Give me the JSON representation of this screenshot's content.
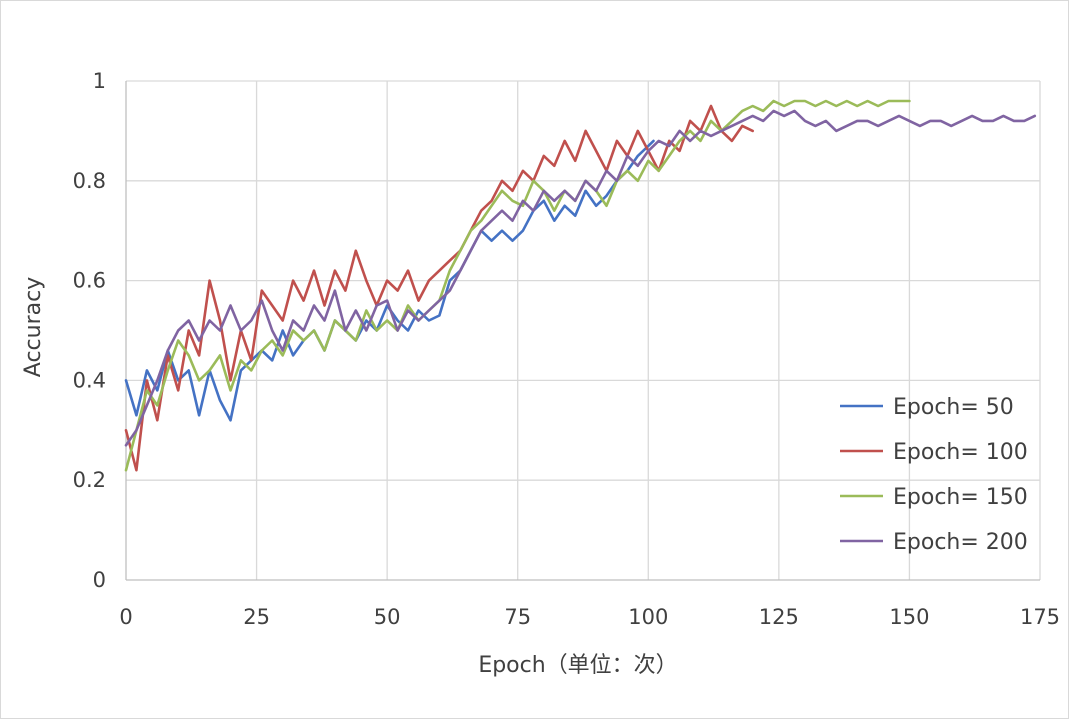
{
  "chart_data": {
    "type": "line",
    "title": "",
    "xlabel": "Epoch（单位：次）",
    "ylabel": "Accuracy",
    "xlim": [
      0,
      175
    ],
    "ylim": [
      0,
      1
    ],
    "x_ticks": [
      "0",
      "25",
      "50",
      "75",
      "100",
      "125",
      "150",
      "175"
    ],
    "y_ticks": [
      "0",
      "0.2",
      "0.4",
      "0.6",
      "0.8",
      "1"
    ],
    "grid": true,
    "legend_position": "right",
    "series": [
      {
        "name": "Epoch= 50",
        "color": "#4472c4",
        "x": [
          0,
          2,
          4,
          6,
          8,
          10,
          12,
          14,
          16,
          18,
          20,
          22,
          24,
          26,
          28,
          30,
          32,
          34,
          36,
          38,
          40,
          42,
          44,
          46,
          48,
          50,
          52,
          54,
          56,
          58,
          60,
          62,
          64,
          66,
          68,
          70,
          72,
          74,
          76,
          78,
          80,
          82,
          84,
          86,
          88,
          90,
          92,
          94,
          96,
          98,
          100,
          101
        ],
        "y": [
          0.4,
          0.33,
          0.42,
          0.38,
          0.46,
          0.4,
          0.42,
          0.33,
          0.42,
          0.36,
          0.32,
          0.42,
          0.44,
          0.46,
          0.44,
          0.5,
          0.45,
          0.48,
          0.5,
          0.46,
          0.52,
          0.5,
          0.48,
          0.52,
          0.5,
          0.55,
          0.52,
          0.5,
          0.54,
          0.52,
          0.53,
          0.6,
          0.62,
          0.66,
          0.7,
          0.68,
          0.7,
          0.68,
          0.7,
          0.74,
          0.76,
          0.72,
          0.75,
          0.73,
          0.78,
          0.75,
          0.77,
          0.8,
          0.82,
          0.85,
          0.87,
          0.88
        ]
      },
      {
        "name": "Epoch= 100",
        "color": "#c0504d",
        "x": [
          0,
          2,
          4,
          6,
          8,
          10,
          12,
          14,
          16,
          18,
          20,
          22,
          24,
          26,
          28,
          30,
          32,
          34,
          36,
          38,
          40,
          42,
          44,
          46,
          48,
          50,
          52,
          54,
          56,
          58,
          60,
          62,
          64,
          66,
          68,
          70,
          72,
          74,
          76,
          78,
          80,
          82,
          84,
          86,
          88,
          90,
          92,
          94,
          96,
          98,
          100,
          102,
          104,
          106,
          108,
          110,
          112,
          114,
          116,
          118,
          120
        ],
        "y": [
          0.3,
          0.22,
          0.4,
          0.32,
          0.45,
          0.38,
          0.5,
          0.45,
          0.6,
          0.52,
          0.4,
          0.5,
          0.44,
          0.58,
          0.55,
          0.52,
          0.6,
          0.56,
          0.62,
          0.55,
          0.62,
          0.58,
          0.66,
          0.6,
          0.55,
          0.6,
          0.58,
          0.62,
          0.56,
          0.6,
          0.62,
          0.64,
          0.66,
          0.7,
          0.74,
          0.76,
          0.8,
          0.78,
          0.82,
          0.8,
          0.85,
          0.83,
          0.88,
          0.84,
          0.9,
          0.86,
          0.82,
          0.88,
          0.85,
          0.9,
          0.86,
          0.82,
          0.88,
          0.86,
          0.92,
          0.9,
          0.95,
          0.9,
          0.88,
          0.91,
          0.9
        ]
      },
      {
        "name": "Epoch= 150",
        "color": "#9bbb59",
        "x": [
          0,
          2,
          4,
          6,
          8,
          10,
          12,
          14,
          16,
          18,
          20,
          22,
          24,
          26,
          28,
          30,
          32,
          34,
          36,
          38,
          40,
          42,
          44,
          46,
          48,
          50,
          52,
          54,
          56,
          58,
          60,
          62,
          64,
          66,
          68,
          70,
          72,
          74,
          76,
          78,
          80,
          82,
          84,
          86,
          88,
          90,
          92,
          94,
          96,
          98,
          100,
          102,
          104,
          106,
          108,
          110,
          112,
          114,
          116,
          118,
          120,
          122,
          124,
          126,
          128,
          130,
          132,
          134,
          136,
          138,
          140,
          142,
          144,
          146,
          148,
          150
        ],
        "y": [
          0.22,
          0.3,
          0.38,
          0.35,
          0.42,
          0.48,
          0.45,
          0.4,
          0.42,
          0.45,
          0.38,
          0.44,
          0.42,
          0.46,
          0.48,
          0.45,
          0.5,
          0.48,
          0.5,
          0.46,
          0.52,
          0.5,
          0.48,
          0.54,
          0.5,
          0.52,
          0.5,
          0.55,
          0.52,
          0.54,
          0.56,
          0.62,
          0.66,
          0.7,
          0.72,
          0.75,
          0.78,
          0.76,
          0.75,
          0.8,
          0.78,
          0.74,
          0.78,
          0.76,
          0.8,
          0.78,
          0.75,
          0.8,
          0.82,
          0.8,
          0.84,
          0.82,
          0.85,
          0.88,
          0.9,
          0.88,
          0.92,
          0.9,
          0.92,
          0.94,
          0.95,
          0.94,
          0.96,
          0.95,
          0.96,
          0.96,
          0.95,
          0.96,
          0.95,
          0.96,
          0.95,
          0.96,
          0.95,
          0.96,
          0.96,
          0.96
        ]
      },
      {
        "name": "Epoch= 200",
        "color": "#8064a2",
        "x": [
          0,
          2,
          4,
          6,
          8,
          10,
          12,
          14,
          16,
          18,
          20,
          22,
          24,
          26,
          28,
          30,
          32,
          34,
          36,
          38,
          40,
          42,
          44,
          46,
          48,
          50,
          52,
          54,
          56,
          58,
          60,
          62,
          64,
          66,
          68,
          70,
          72,
          74,
          76,
          78,
          80,
          82,
          84,
          86,
          88,
          90,
          92,
          94,
          96,
          98,
          100,
          102,
          104,
          106,
          108,
          110,
          112,
          114,
          116,
          118,
          120,
          122,
          124,
          126,
          128,
          130,
          132,
          134,
          136,
          138,
          140,
          142,
          144,
          146,
          148,
          150,
          152,
          154,
          156,
          158,
          160,
          162,
          164,
          166,
          168,
          170,
          172,
          174
        ],
        "y": [
          0.27,
          0.3,
          0.35,
          0.4,
          0.46,
          0.5,
          0.52,
          0.48,
          0.52,
          0.5,
          0.55,
          0.5,
          0.52,
          0.56,
          0.5,
          0.46,
          0.52,
          0.5,
          0.55,
          0.52,
          0.58,
          0.5,
          0.54,
          0.5,
          0.55,
          0.56,
          0.5,
          0.54,
          0.52,
          0.54,
          0.56,
          0.58,
          0.62,
          0.66,
          0.7,
          0.72,
          0.74,
          0.72,
          0.76,
          0.74,
          0.78,
          0.76,
          0.78,
          0.76,
          0.8,
          0.78,
          0.82,
          0.8,
          0.85,
          0.83,
          0.86,
          0.88,
          0.87,
          0.9,
          0.88,
          0.9,
          0.89,
          0.9,
          0.91,
          0.92,
          0.93,
          0.92,
          0.94,
          0.93,
          0.94,
          0.92,
          0.91,
          0.92,
          0.9,
          0.91,
          0.92,
          0.92,
          0.91,
          0.92,
          0.93,
          0.92,
          0.91,
          0.92,
          0.92,
          0.91,
          0.92,
          0.93,
          0.92,
          0.92,
          0.93,
          0.92,
          0.92,
          0.93
        ]
      }
    ]
  }
}
